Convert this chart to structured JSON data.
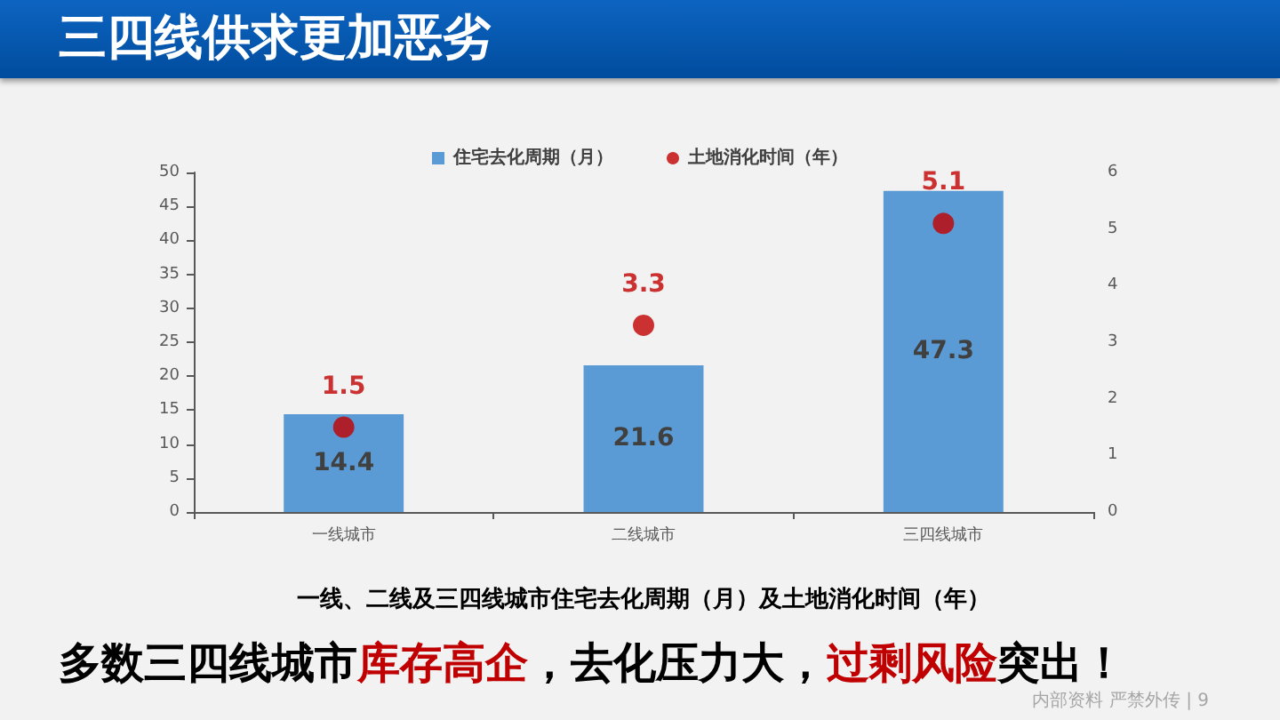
{
  "chart_data": {
    "type": "bar",
    "title": "三四线供求更加恶劣",
    "xlabel": "一线、二线及三四线城市住宅去化周期（月）及土地消化时间（年）",
    "categories": [
      "一线城市",
      "二线城市",
      "三四线城市"
    ],
    "series": [
      {
        "name": "住宅去化周期（月）",
        "color": "#5b9bd5",
        "values": [
          14.4,
          21.6,
          47.3
        ]
      },
      {
        "name": "土地消化时间（年）",
        "type": "scatter",
        "axis": "y2",
        "color": "#c00000",
        "values": [
          1.5,
          3.3,
          5.1
        ]
      }
    ],
    "ylim": [
      0,
      50
    ],
    "yticks": [
      0,
      5,
      10,
      15,
      20,
      25,
      30,
      35,
      40,
      45,
      50
    ],
    "y2lim": [
      0,
      6
    ],
    "y2ticks": [
      0,
      1,
      2,
      3,
      4,
      5,
      6
    ],
    "legend": "top",
    "data_labels": true,
    "marker": "circle",
    "annotations": [
      "多数三四线城市",
      "库存高企",
      "，去化压力大，",
      "过剩风险",
      "突出！",
      "内部资料 严禁外传 | 9"
    ]
  }
}
